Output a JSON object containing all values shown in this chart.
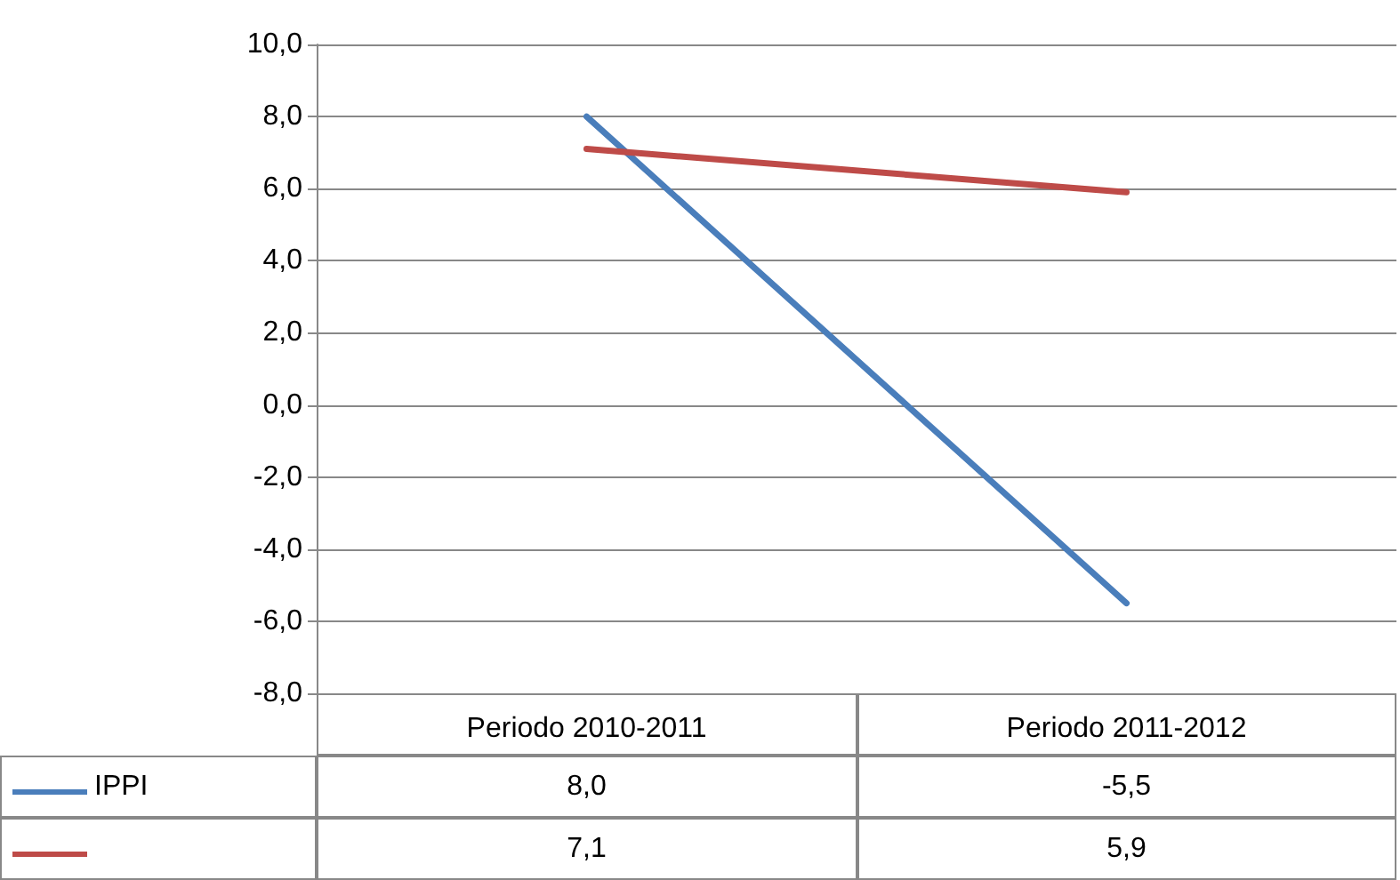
{
  "chart_data": {
    "type": "line",
    "categories": [
      "Periodo 2010-2011",
      "Periodo 2011-2012"
    ],
    "series": [
      {
        "name": "IPPI",
        "color": "#4a7ebb",
        "values": [
          8.0,
          -5.5
        ],
        "value_labels": [
          "8,0",
          "-5,5"
        ]
      },
      {
        "color": "#be4b48",
        "values": [
          7.1,
          5.9
        ],
        "value_labels": [
          "7,1",
          "5,9"
        ]
      }
    ],
    "ylim": [
      -8,
      10
    ],
    "yticks": [
      {
        "value": -8,
        "label": "-8,0"
      },
      {
        "value": -6,
        "label": "-6,0"
      },
      {
        "value": -4,
        "label": "-4,0"
      },
      {
        "value": -2,
        "label": "-2,0"
      },
      {
        "value": 0,
        "label": "0,0"
      },
      {
        "value": 2,
        "label": "2,0"
      },
      {
        "value": 4,
        "label": "4,0"
      },
      {
        "value": 6,
        "label": "6,0"
      },
      {
        "value": 8,
        "label": "8,0"
      },
      {
        "value": 10,
        "label": "10,0"
      }
    ],
    "grid": "y",
    "legend": "bottom",
    "marker": "none",
    "line_style": "solid"
  }
}
